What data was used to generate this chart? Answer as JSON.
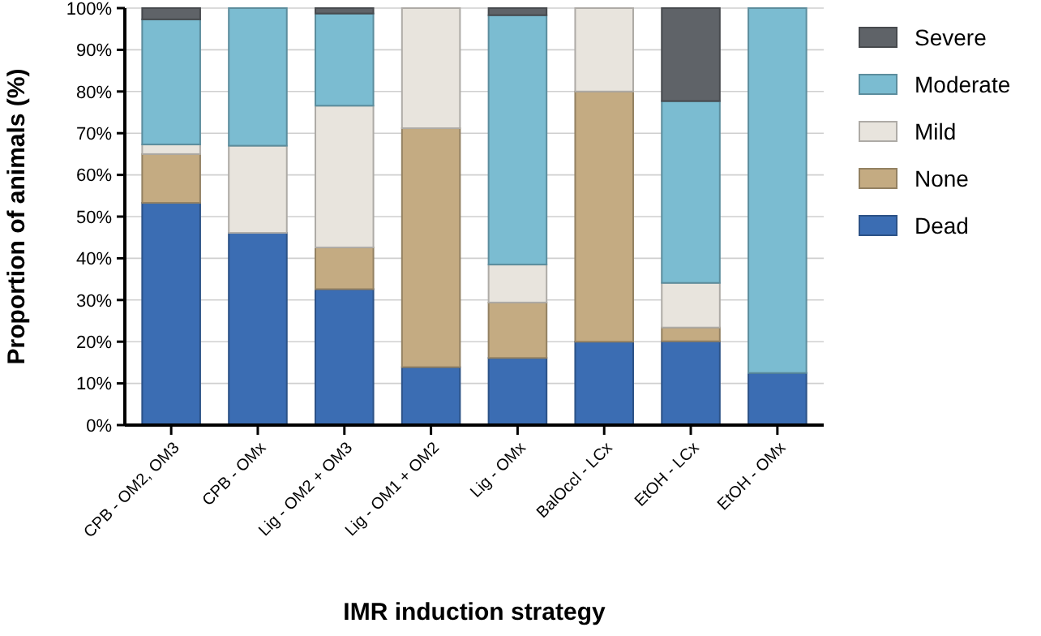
{
  "chart_data": {
    "type": "bar",
    "stacked": true,
    "xlabel": "IMR induction strategy",
    "ylabel": "Proportion of animals (%)",
    "categories": [
      "CPB - OM2, OM3",
      "CPB - OMx",
      "Lig - OM2 + OM3",
      "Lig - OM1 + OM2",
      "Lig - OMx",
      "BalOccl - LCx",
      "EtOH - LCx",
      "EtOH - OMx"
    ],
    "series": [
      {
        "name": "Dead",
        "color": "#3b6db3",
        "values": [
          53.3,
          46.1,
          32.6,
          13.9,
          16.1,
          20,
          20.1,
          12.5
        ]
      },
      {
        "name": "None",
        "color": "#c4ab82",
        "values": [
          11.7,
          0,
          10,
          57.3,
          13.3,
          60,
          3.3,
          0
        ]
      },
      {
        "name": "Mild",
        "color": "#e8e4dd",
        "values": [
          2.3,
          20.9,
          34,
          28.8,
          9.1,
          20,
          10.7,
          0
        ]
      },
      {
        "name": "Moderate",
        "color": "#7bbcd1",
        "values": [
          30,
          33,
          22.1,
          0,
          59.8,
          0,
          43.6,
          87.5
        ]
      },
      {
        "name": "Severe",
        "color": "#5f6368",
        "values": [
          2.7,
          0,
          1.3,
          0,
          1.7,
          0,
          22.3,
          0
        ]
      }
    ],
    "ylim": [
      0,
      100
    ],
    "yticks": [
      {
        "value": 0,
        "label": "0%"
      },
      {
        "value": 10,
        "label": "10%"
      },
      {
        "value": 20,
        "label": "20%"
      },
      {
        "value": 30,
        "label": "30%"
      },
      {
        "value": 40,
        "label": "40%"
      },
      {
        "value": 50,
        "label": "50%"
      },
      {
        "value": 60,
        "label": "60%"
      },
      {
        "value": 70,
        "label": "70%"
      },
      {
        "value": 80,
        "label": "80%"
      },
      {
        "value": 90,
        "label": "90%"
      },
      {
        "value": 100,
        "label": "100%"
      }
    ],
    "grid": "y",
    "legend": "top right"
  }
}
